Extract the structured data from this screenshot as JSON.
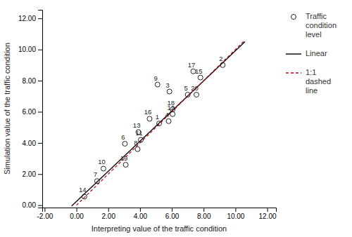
{
  "chart_data": {
    "type": "scatter",
    "x_label": "Interpreting value of the traffic condition",
    "y_label": "Simulation value of the traffic condition",
    "xlim": [
      -2.15,
      12.55
    ],
    "ylim": [
      -0.15,
      12.55
    ],
    "xticks": [
      {
        "value": -2.0,
        "label": "-2.00"
      },
      {
        "value": 0.0,
        "label": "0.00"
      },
      {
        "value": 2.0,
        "label": "2.00"
      },
      {
        "value": 4.0,
        "label": "4.00"
      },
      {
        "value": 6.0,
        "label": "6.00"
      },
      {
        "value": 8.0,
        "label": "8.00"
      },
      {
        "value": 10.0,
        "label": "10.00"
      },
      {
        "value": 12.0,
        "label": "12.00"
      }
    ],
    "yticks": [
      {
        "value": 0.0,
        "label": "0.00"
      },
      {
        "value": 2.0,
        "label": "2.00"
      },
      {
        "value": 4.0,
        "label": "4.00"
      },
      {
        "value": 6.0,
        "label": "6.00"
      },
      {
        "value": 8.0,
        "label": "8.00"
      },
      {
        "value": 10.0,
        "label": "10.00"
      },
      {
        "value": 12.0,
        "label": "12.00"
      }
    ],
    "grid": false,
    "legend": "right",
    "series": [
      {
        "name": "Traffic\ncondition\nlevel",
        "type": "scatter",
        "marker": "circle",
        "color": "#222222",
        "x": [
          0.5,
          1.3,
          1.7,
          3.1,
          3.05,
          3.85,
          4.05,
          3.9,
          4.6,
          5.2,
          5.1,
          5.8,
          6.05,
          6.05,
          5.85,
          7.0,
          7.55,
          7.8,
          7.35,
          9.2
        ],
        "values": [
          0.55,
          1.55,
          2.35,
          2.6,
          3.95,
          3.6,
          4.2,
          4.7,
          5.55,
          5.25,
          7.75,
          5.4,
          6.15,
          5.85,
          7.3,
          7.1,
          7.1,
          8.2,
          8.6,
          9.0
        ],
        "labels": [
          "14",
          "7",
          "10",
          "19",
          "6",
          "8",
          "11",
          "13",
          "16",
          "1",
          "9",
          "4",
          "18",
          "12",
          "3",
          "5",
          "20",
          "15",
          "17",
          "2"
        ]
      },
      {
        "name": "Linear",
        "type": "line",
        "line_style": "solid",
        "color": "#111111",
        "x": [
          -0.3,
          10.6
        ],
        "values": [
          -0.05,
          10.5
        ]
      },
      {
        "name": "1:1\ndashed\nline",
        "type": "line",
        "line_style": "dashed",
        "color": "#cc0000",
        "x": [
          0.0,
          10.6
        ],
        "values": [
          0.0,
          10.6
        ]
      }
    ]
  }
}
